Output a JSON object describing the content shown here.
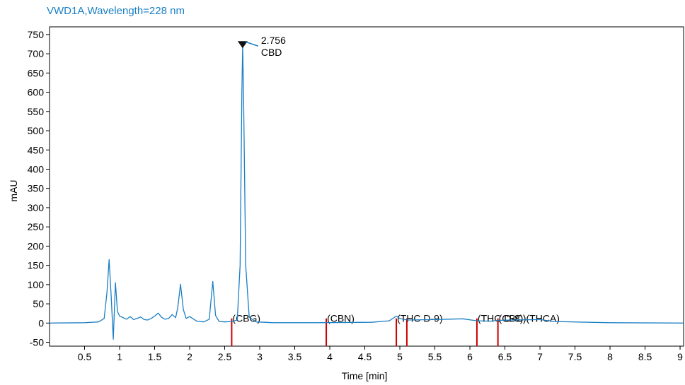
{
  "chart_data": {
    "type": "line",
    "title": "VWD1A,Wavelength=228 nm",
    "xlabel": "Time [min]",
    "ylabel": "mAU",
    "xlim": [
      0,
      9.05
    ],
    "ylim": [
      -60,
      770
    ],
    "xticks": [
      0.5,
      1,
      1.5,
      2,
      2.5,
      3,
      3.5,
      4,
      4.5,
      5,
      5.5,
      6,
      6.5,
      7,
      7.5,
      8,
      8.5,
      9
    ],
    "yticks": [
      -50,
      0,
      50,
      100,
      150,
      200,
      250,
      300,
      350,
      400,
      450,
      500,
      550,
      600,
      650,
      700,
      750
    ],
    "grid": false,
    "series": [
      {
        "color": "#1a7fc4",
        "x": [
          0.0,
          0.5,
          0.7,
          0.78,
          0.82,
          0.85,
          0.88,
          0.91,
          0.94,
          0.97,
          1.0,
          1.05,
          1.1,
          1.15,
          1.2,
          1.25,
          1.3,
          1.35,
          1.4,
          1.45,
          1.5,
          1.55,
          1.6,
          1.65,
          1.7,
          1.75,
          1.8,
          1.83,
          1.87,
          1.91,
          1.95,
          2.0,
          2.1,
          2.2,
          2.28,
          2.33,
          2.37,
          2.42,
          2.5,
          2.6,
          2.68,
          2.72,
          2.745,
          2.756,
          2.77,
          2.8,
          2.85,
          2.95,
          3.2,
          3.8,
          4.6,
          4.85,
          4.95,
          5.0,
          5.1,
          5.5,
          5.9,
          6.1,
          6.3,
          6.4,
          6.6,
          7.0,
          7.2,
          8.0,
          9.05
        ],
        "y": [
          0,
          1,
          3,
          12,
          80,
          165,
          70,
          -42,
          105,
          30,
          18,
          14,
          10,
          17,
          9,
          12,
          16,
          9,
          8,
          12,
          18,
          26,
          15,
          10,
          12,
          22,
          14,
          40,
          101,
          35,
          12,
          17,
          5,
          3,
          10,
          108,
          20,
          4,
          3,
          4,
          8,
          150,
          600,
          720,
          590,
          150,
          15,
          3,
          1,
          1,
          2,
          6,
          18,
          12,
          8,
          9,
          11,
          6,
          5,
          7,
          8,
          9,
          4,
          1,
          0
        ]
      }
    ],
    "peak_annotations": [
      {
        "time": 2.756,
        "value": 720,
        "label_time": "2.756",
        "label_name": "CBD"
      }
    ],
    "markers": [
      {
        "x": 2.6,
        "label": "(CBG)"
      },
      {
        "x": 3.95,
        "label": "(CBN)"
      },
      {
        "x": 4.95,
        "label": "(THC D-9)"
      },
      {
        "x": 5.1,
        "label": ""
      },
      {
        "x": 6.1,
        "label": "(THC D-8)"
      },
      {
        "x": 6.4,
        "label": "(CBC)(THCA)"
      }
    ],
    "marker_color": "#cc0000"
  }
}
